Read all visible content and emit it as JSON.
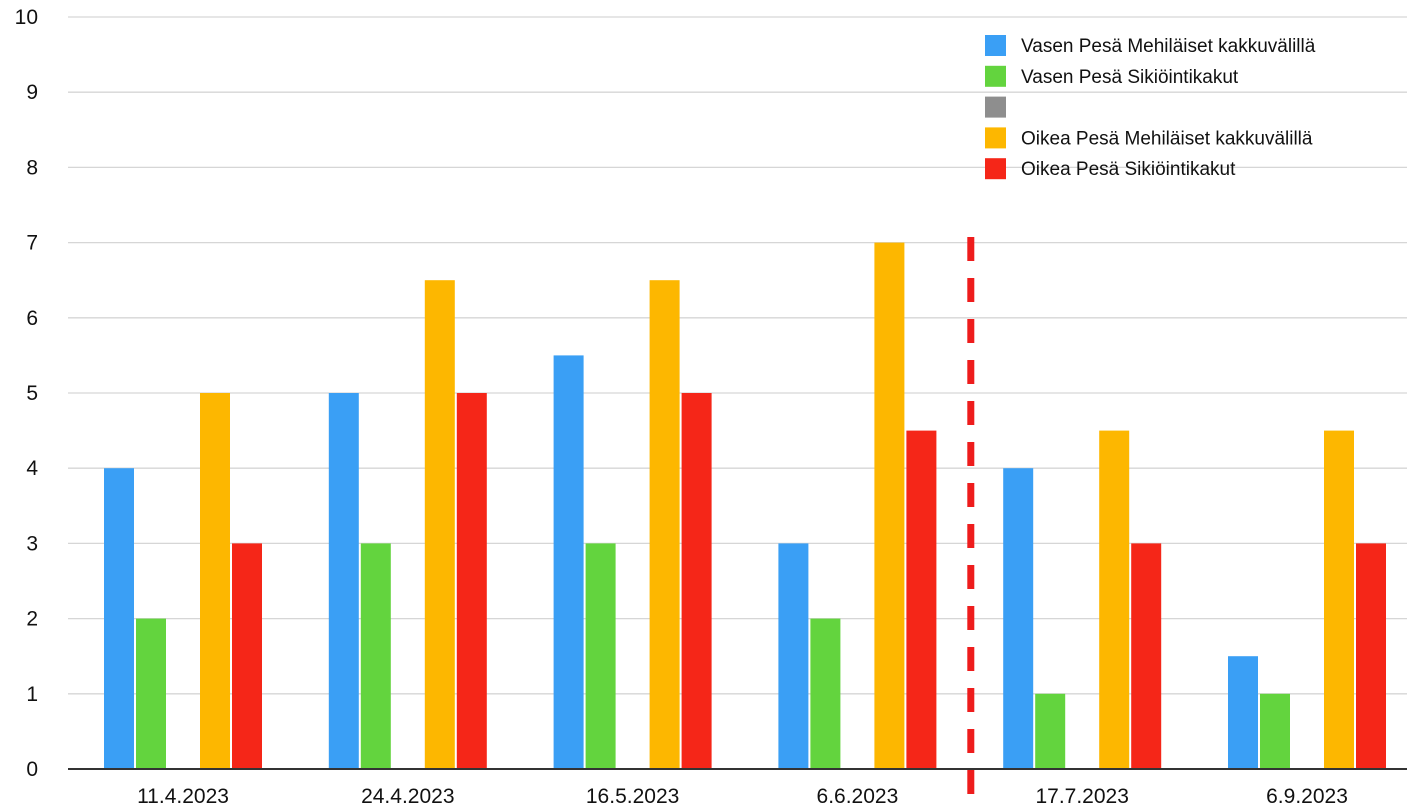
{
  "chart_data": {
    "type": "bar",
    "categories": [
      "11.4.2023",
      "24.4.2023",
      "16.5.2023",
      "6.6.2023",
      "17.7.2023",
      "6.9.2023"
    ],
    "series": [
      {
        "name": "Vasen Pesä Mehiläiset kakkuvälillä",
        "color": "#3a9ff5",
        "values": [
          4,
          5,
          5.5,
          3,
          4,
          1.5
        ]
      },
      {
        "name": "Vasen Pesä Sikiöintikakut",
        "color": "#63d43e",
        "values": [
          2,
          3,
          3,
          2,
          1,
          1
        ]
      },
      {
        "name": "",
        "color": "#8e8e8e",
        "values": [
          0,
          0,
          0,
          0,
          0,
          0
        ]
      },
      {
        "name": "Oikea Pesä Mehiläiset kakkuvälillä",
        "color": "#fdb700",
        "values": [
          5,
          6.5,
          6.5,
          7,
          4.5,
          4.5
        ]
      },
      {
        "name": "Oikea Pesä Sikiöintikakut",
        "color": "#f52618",
        "values": [
          3,
          5,
          5,
          4.5,
          3,
          3
        ]
      }
    ],
    "title": "",
    "xlabel": "",
    "ylabel": "",
    "ylim": [
      0,
      10
    ],
    "yticks": [
      "0",
      "1",
      "2",
      "3",
      "4",
      "5",
      "6",
      "7",
      "8",
      "9",
      "10"
    ],
    "grid": true,
    "legend": "top-right",
    "annotations": [
      {
        "type": "vertical-dashed-line",
        "between": [
          "6.6.2023",
          "17.7.2023"
        ],
        "color": "#ee1c1c"
      }
    ]
  }
}
